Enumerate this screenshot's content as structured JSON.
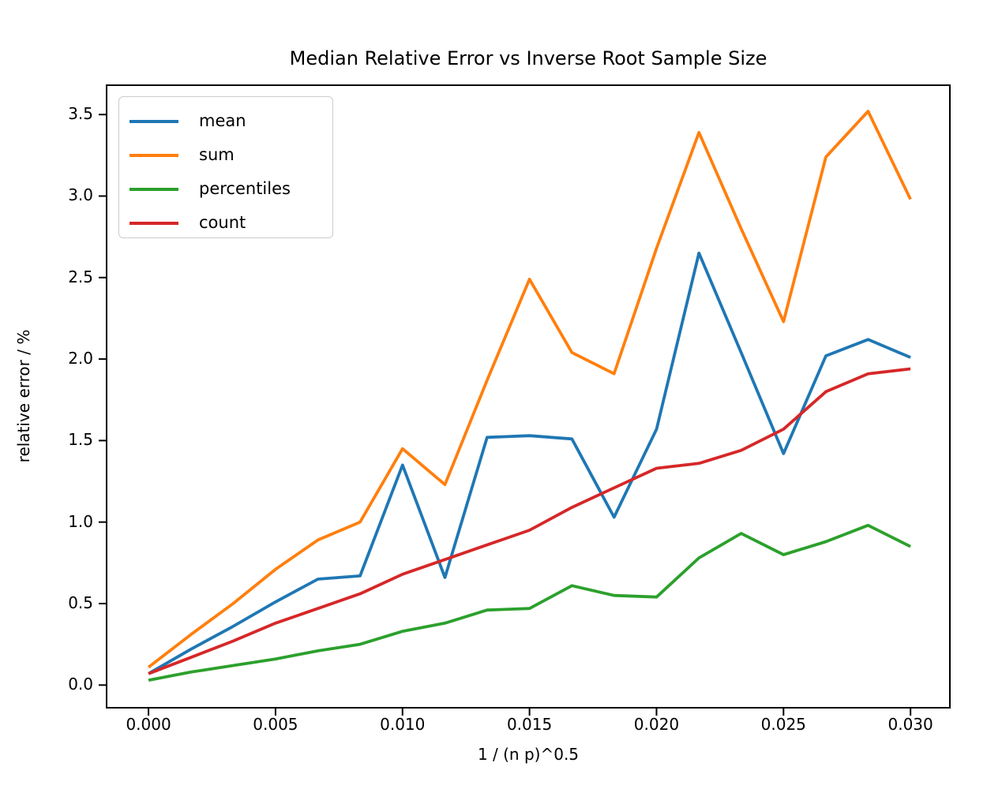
{
  "chart_data": {
    "type": "line",
    "title": "Median Relative Error vs Inverse Root Sample Size",
    "xlabel": "1 / (n p)^0.5",
    "ylabel": "relative error / %",
    "grid": false,
    "legend_position": "upper left",
    "xlim": [
      -0.00165,
      0.03155
    ],
    "ylim": [
      -0.139,
      3.68
    ],
    "x_ticks": {
      "values": [
        0,
        0.005,
        0.01,
        0.015,
        0.02,
        0.025,
        0.03
      ],
      "labels": [
        "0.000",
        "0.005",
        "0.010",
        "0.015",
        "0.020",
        "0.025",
        "0.030"
      ]
    },
    "y_ticks": {
      "values": [
        0,
        0.5,
        1,
        1.5,
        2,
        2.5,
        3,
        3.5
      ],
      "labels": [
        "0.0",
        "0.5",
        "1.0",
        "1.5",
        "2.0",
        "2.5",
        "3.0",
        "3.5"
      ]
    },
    "x": [
      0,
      0.00167,
      0.00333,
      0.005,
      0.00667,
      0.00833,
      0.01,
      0.01167,
      0.01333,
      0.015,
      0.01667,
      0.01833,
      0.02,
      0.02167,
      0.02333,
      0.025,
      0.02667,
      0.02833,
      0.03
    ],
    "series": [
      {
        "name": "mean",
        "color": "#1f77b4",
        "values": [
          0.07,
          0.22,
          0.36,
          0.51,
          0.65,
          0.67,
          1.35,
          0.66,
          1.52,
          1.53,
          1.51,
          1.03,
          1.57,
          2.65,
          2.04,
          1.42,
          2.02,
          2.12,
          2.01
        ]
      },
      {
        "name": "sum",
        "color": "#ff7f0e",
        "values": [
          0.11,
          0.31,
          0.5,
          0.71,
          0.89,
          1.0,
          1.45,
          1.23,
          1.87,
          2.49,
          2.04,
          1.91,
          2.68,
          3.39,
          2.8,
          2.23,
          3.24,
          3.52,
          2.98
        ]
      },
      {
        "name": "percentiles",
        "color": "#2ca02c",
        "values": [
          0.03,
          0.08,
          0.12,
          0.16,
          0.21,
          0.25,
          0.33,
          0.38,
          0.46,
          0.47,
          0.61,
          0.55,
          0.54,
          0.78,
          0.93,
          0.8,
          0.88,
          0.98,
          0.85
        ]
      },
      {
        "name": "count",
        "color": "#d62728",
        "values": [
          0.07,
          0.17,
          0.27,
          0.38,
          0.47,
          0.56,
          0.68,
          0.77,
          0.86,
          0.95,
          1.09,
          1.21,
          1.33,
          1.36,
          1.44,
          1.57,
          1.8,
          1.91,
          1.94
        ]
      }
    ],
    "axis_color": "#000000",
    "legend_border_color": "#cccccc"
  }
}
